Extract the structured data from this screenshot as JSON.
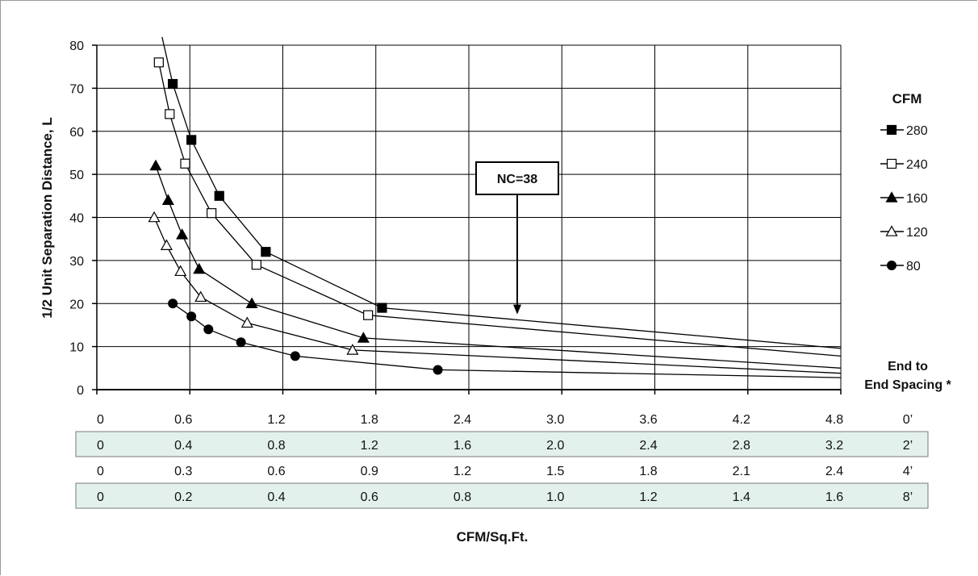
{
  "chart_data": {
    "type": "line",
    "ylabel": "1/2 Unit Separation Distance, L",
    "xlabel": "CFM/Sq.Ft.",
    "ylim": [
      0,
      80
    ],
    "xlim": [
      0,
      4.8
    ],
    "yticks": [
      "0",
      "10",
      "20",
      "30",
      "40",
      "50",
      "60",
      "70",
      "80"
    ],
    "grid": true,
    "legend_title": "CFM",
    "legend_position": "right",
    "annotation": "NC=38",
    "spacing_title": "End to End Spacing *",
    "spacing_rows": [
      {
        "spacing": "0’",
        "ticks": [
          "0",
          "0.6",
          "1.2",
          "1.8",
          "2.4",
          "3.0",
          "3.6",
          "4.2",
          "4.8"
        ],
        "shaded": false
      },
      {
        "spacing": "2’",
        "ticks": [
          "0",
          "0.4",
          "0.8",
          "1.2",
          "1.6",
          "2.0",
          "2.4",
          "2.8",
          "3.2"
        ],
        "shaded": true
      },
      {
        "spacing": "4’",
        "ticks": [
          "0",
          "0.3",
          "0.6",
          "0.9",
          "1.2",
          "1.5",
          "1.8",
          "2.1",
          "2.4"
        ],
        "shaded": false
      },
      {
        "spacing": "8’",
        "ticks": [
          "0",
          "0.2",
          "0.4",
          "0.6",
          "0.8",
          "1.0",
          "1.2",
          "1.4",
          "1.6"
        ],
        "shaded": true
      }
    ],
    "series": [
      {
        "name": "280",
        "marker": "square-filled",
        "points": [
          [
            0.49,
            71
          ],
          [
            0.61,
            58
          ],
          [
            0.79,
            45
          ],
          [
            1.09,
            32
          ],
          [
            1.84,
            19
          ]
        ],
        "line": [
          [
            0.42,
            82
          ],
          [
            0.49,
            71
          ],
          [
            0.61,
            58
          ],
          [
            0.79,
            45
          ],
          [
            1.09,
            32
          ],
          [
            1.84,
            19
          ],
          [
            4.8,
            9.6
          ]
        ]
      },
      {
        "name": "240",
        "marker": "square-open",
        "points": [
          [
            0.4,
            76
          ],
          [
            0.47,
            64
          ],
          [
            0.57,
            52.5
          ],
          [
            0.74,
            41
          ],
          [
            1.03,
            29
          ],
          [
            1.75,
            17.3
          ]
        ],
        "line": [
          [
            0.4,
            76
          ],
          [
            0.47,
            64
          ],
          [
            0.57,
            52.5
          ],
          [
            0.74,
            41
          ],
          [
            1.03,
            29
          ],
          [
            1.75,
            17.3
          ],
          [
            4.8,
            7.8
          ]
        ]
      },
      {
        "name": "160",
        "marker": "triangle-filled",
        "points": [
          [
            0.38,
            52
          ],
          [
            0.46,
            44
          ],
          [
            0.55,
            36
          ],
          [
            0.66,
            28
          ],
          [
            1.0,
            20
          ],
          [
            1.72,
            12
          ]
        ],
        "line": [
          [
            0.38,
            52
          ],
          [
            0.46,
            44
          ],
          [
            0.55,
            36
          ],
          [
            0.66,
            28
          ],
          [
            1.0,
            20
          ],
          [
            1.72,
            12
          ],
          [
            4.8,
            5.0
          ]
        ]
      },
      {
        "name": "120",
        "marker": "triangle-open",
        "points": [
          [
            0.37,
            40
          ],
          [
            0.45,
            33.5
          ],
          [
            0.54,
            27.5
          ],
          [
            0.67,
            21.5
          ],
          [
            0.97,
            15.5
          ],
          [
            1.65,
            9.2
          ]
        ],
        "line": [
          [
            0.37,
            40
          ],
          [
            0.45,
            33.5
          ],
          [
            0.54,
            27.5
          ],
          [
            0.67,
            21.5
          ],
          [
            0.97,
            15.5
          ],
          [
            1.65,
            9.2
          ],
          [
            4.8,
            3.8
          ]
        ]
      },
      {
        "name": "80",
        "marker": "circle-filled",
        "points": [
          [
            0.49,
            20
          ],
          [
            0.61,
            17
          ],
          [
            0.72,
            14
          ],
          [
            0.93,
            11
          ],
          [
            1.28,
            7.8
          ],
          [
            2.2,
            4.6
          ]
        ],
        "line": [
          [
            0.49,
            20
          ],
          [
            0.61,
            17
          ],
          [
            0.72,
            14
          ],
          [
            0.93,
            11
          ],
          [
            1.28,
            7.8
          ],
          [
            2.2,
            4.6
          ],
          [
            4.8,
            2.8
          ]
        ]
      }
    ]
  }
}
